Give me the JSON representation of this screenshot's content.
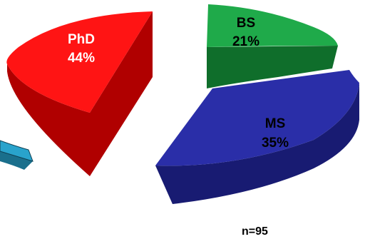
{
  "chart_data": {
    "type": "pie",
    "style": "3d-exploded",
    "slices": [
      {
        "label": "BS",
        "value": 21,
        "pct_label": "21%",
        "color": "#1faa4a",
        "side": "#0f6e2b",
        "label_color": "#000000"
      },
      {
        "label": "MS",
        "value": 35,
        "pct_label": "35%",
        "color": "#2a2ea8",
        "side": "#181b72",
        "label_color": "#000000"
      },
      {
        "label": "PhD",
        "value": 44,
        "pct_label": "44%",
        "color": "#ff1414",
        "side": "#b00000",
        "label_color": "#ffffff"
      },
      {
        "label": "",
        "value": null,
        "pct_label": "",
        "color": "#29a3cc",
        "side": "#1a6f8c",
        "note": "partially cropped slice at left edge"
      }
    ],
    "annotation": "n=95"
  }
}
